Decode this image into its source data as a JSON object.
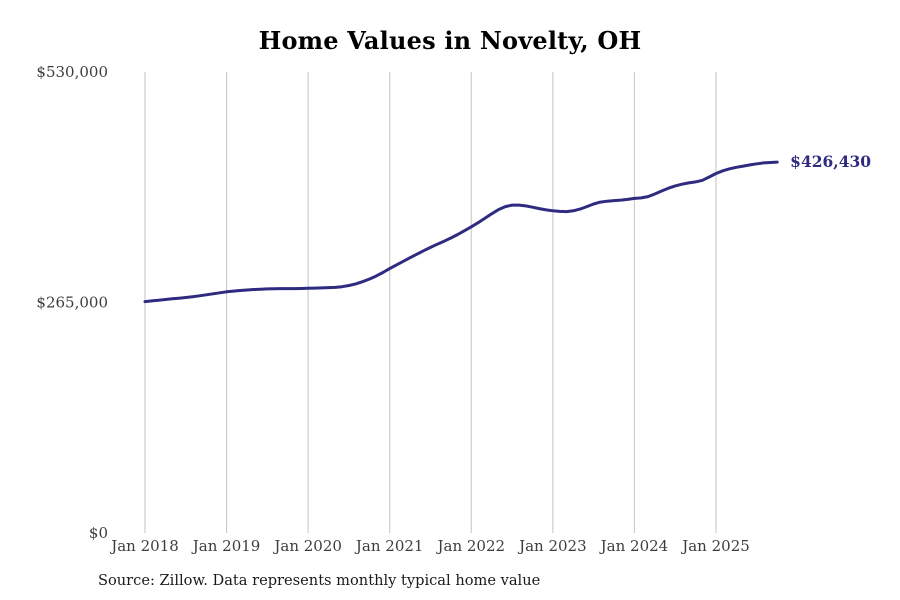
{
  "page": {
    "title": "Home Values in Novelty, OH",
    "source_note": "Source: Zillow. Data represents monthly typical home value"
  },
  "chart_data": {
    "type": "line",
    "title": "Home Values in Novelty, OH",
    "xlabel": "",
    "ylabel": "",
    "ylim": [
      0,
      530000
    ],
    "grid": "vertical-only",
    "legend": "none",
    "x_tick_labels": [
      "Jan 2018",
      "Jan 2019",
      "Jan 2020",
      "Jan 2021",
      "Jan 2022",
      "Jan 2023",
      "Jan 2024",
      "Jan 2025"
    ],
    "y_ticks": [
      {
        "label": "$0",
        "value": 0
      },
      {
        "label": "$265,000",
        "value": 265000
      },
      {
        "label": "$530,000",
        "value": 530000
      }
    ],
    "end_label": "$426,430",
    "latest_value": 426430,
    "colors": {
      "line": "#2e2b80",
      "end_label": "#2e2b80",
      "grid": "#cccccc",
      "axis_text": "#3d3d3d",
      "title": "#000000"
    },
    "series": [
      {
        "name": "Monthly typical home value",
        "start_month": "2018-01",
        "end_month": "2025-10",
        "interval": "monthly",
        "values": [
          266000,
          266800,
          267600,
          268400,
          269200,
          270000,
          270800,
          271700,
          272700,
          273800,
          275000,
          276200,
          277300,
          278100,
          278800,
          279400,
          279900,
          280300,
          280600,
          280800,
          281000,
          281000,
          281000,
          281100,
          281300,
          281500,
          281800,
          282100,
          282400,
          283200,
          284500,
          286400,
          288900,
          291900,
          295400,
          299500,
          304000,
          308200,
          312400,
          316500,
          320500,
          324500,
          328400,
          332000,
          335500,
          339100,
          343200,
          347500,
          352000,
          356700,
          361800,
          367000,
          371800,
          375300,
          377000,
          377000,
          376100,
          374600,
          373000,
          371500,
          370400,
          369700,
          369500,
          370400,
          372400,
          375300,
          378300,
          380400,
          381500,
          382100,
          382700,
          383500,
          384700,
          385300,
          386800,
          389700,
          393200,
          396400,
          399000,
          401000,
          402500,
          403600,
          405500,
          409300,
          413300,
          416400,
          418700,
          420400,
          421800,
          423200,
          424500,
          425500,
          426000,
          426430
        ]
      }
    ]
  }
}
